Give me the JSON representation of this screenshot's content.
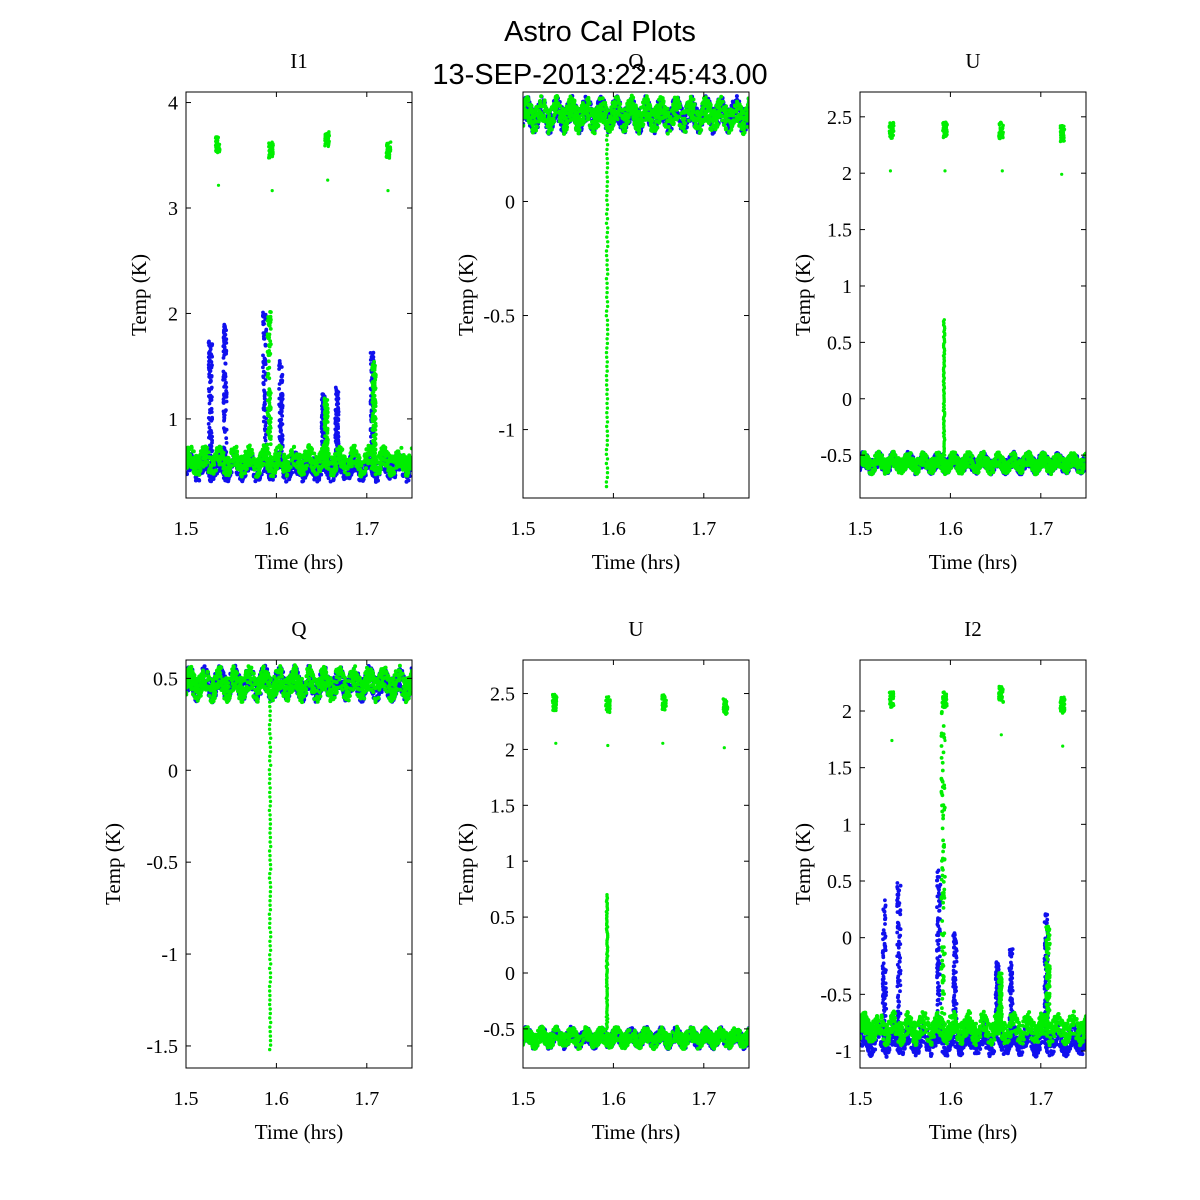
{
  "figure": {
    "title_line1": "Astro Cal Plots",
    "title_line2": "13-SEP-2013:22:45:43.00"
  },
  "colors": {
    "series_blue": "#1010ee",
    "series_green": "#00ee00"
  },
  "chart_data": [
    {
      "type": "scatter",
      "title": "I1",
      "xlabel": "Time (hrs)",
      "ylabel": "Temp (K)",
      "xlim": [
        1.5,
        1.75
      ],
      "ylim": [
        0.25,
        4.1
      ],
      "xticks": [
        1.5,
        1.6,
        1.7
      ],
      "yticks": [
        1,
        2,
        3,
        4
      ],
      "series": [
        {
          "name": "blue",
          "baseline": 0.55,
          "spread": 0.09,
          "peaks": [
            [
              1.527,
              1.75
            ],
            [
              1.543,
              1.9
            ],
            [
              1.587,
              2.02
            ],
            [
              1.605,
              1.55
            ],
            [
              1.652,
              1.25
            ],
            [
              1.667,
              1.3
            ],
            [
              1.706,
              1.63
            ]
          ]
        },
        {
          "name": "green",
          "baseline": 0.6,
          "spread": 0.09,
          "peaks": [
            [
              1.592,
              2.05
            ],
            [
              1.655,
              1.2
            ],
            [
              1.708,
              1.55
            ]
          ],
          "clusters": [
            [
              1.535,
              3.6
            ],
            [
              1.594,
              3.55
            ],
            [
              1.656,
              3.65
            ],
            [
              1.724,
              3.55
            ]
          ]
        }
      ]
    },
    {
      "type": "scatter",
      "title": "Q",
      "xlabel": "Time (hrs)",
      "ylabel": "Temp (K)",
      "xlim": [
        1.5,
        1.75
      ],
      "ylim": [
        -1.3,
        0.48
      ],
      "xticks": [
        1.5,
        1.6,
        1.7
      ],
      "yticks": [
        -1,
        -0.5,
        0
      ],
      "series": [
        {
          "name": "blue",
          "baseline": 0.38,
          "spread": 0.05
        },
        {
          "name": "green",
          "baseline": 0.38,
          "spread": 0.05,
          "vline": [
            1.593,
            -1.25,
            0.35
          ]
        }
      ]
    },
    {
      "type": "scatter",
      "title": "U",
      "xlabel": "Time (hrs)",
      "ylabel": "Temp (K)",
      "xlim": [
        1.5,
        1.75
      ],
      "ylim": [
        -0.88,
        2.72
      ],
      "xticks": [
        1.5,
        1.6,
        1.7
      ],
      "yticks": [
        -0.5,
        0,
        0.5,
        1,
        1.5,
        2,
        2.5
      ],
      "series": [
        {
          "name": "blue",
          "baseline": -0.57,
          "spread": 0.06
        },
        {
          "name": "green",
          "baseline": -0.57,
          "spread": 0.06,
          "vline": [
            1.593,
            -0.5,
            0.7
          ],
          "clusters": [
            [
              1.535,
              2.38
            ],
            [
              1.594,
              2.38
            ],
            [
              1.656,
              2.38
            ],
            [
              1.724,
              2.35
            ]
          ]
        }
      ]
    },
    {
      "type": "scatter",
      "title": "Q",
      "xlabel": "Time (hrs)",
      "ylabel": "Temp (K)",
      "xlim": [
        1.5,
        1.75
      ],
      "ylim": [
        -1.62,
        0.6
      ],
      "xticks": [
        1.5,
        1.6,
        1.7
      ],
      "yticks": [
        -1.5,
        -1,
        -0.5,
        0,
        0.5
      ],
      "series": [
        {
          "name": "blue",
          "baseline": 0.47,
          "spread": 0.06
        },
        {
          "name": "green",
          "baseline": 0.47,
          "spread": 0.06,
          "vline": [
            1.593,
            -1.52,
            0.42
          ]
        }
      ]
    },
    {
      "type": "scatter",
      "title": "U",
      "xlabel": "Time (hrs)",
      "ylabel": "Temp (K)",
      "xlim": [
        1.5,
        1.75
      ],
      "ylim": [
        -0.85,
        2.8
      ],
      "xticks": [
        1.5,
        1.6,
        1.7
      ],
      "yticks": [
        -0.5,
        0,
        0.5,
        1,
        1.5,
        2,
        2.5
      ],
      "series": [
        {
          "name": "blue",
          "baseline": -0.58,
          "spread": 0.06
        },
        {
          "name": "green",
          "baseline": -0.58,
          "spread": 0.06,
          "vline": [
            1.593,
            -0.5,
            0.7
          ],
          "clusters": [
            [
              1.535,
              2.42
            ],
            [
              1.594,
              2.4
            ],
            [
              1.656,
              2.42
            ],
            [
              1.724,
              2.38
            ]
          ]
        }
      ]
    },
    {
      "type": "scatter",
      "title": "I2",
      "xlabel": "Time (hrs)",
      "ylabel": "Temp (K)",
      "xlim": [
        1.5,
        1.75
      ],
      "ylim": [
        -1.15,
        2.45
      ],
      "xticks": [
        1.5,
        1.6,
        1.7
      ],
      "yticks": [
        -1,
        -0.5,
        0,
        0.5,
        1,
        1.5,
        2
      ],
      "series": [
        {
          "name": "blue",
          "baseline": -0.9,
          "spread": 0.09,
          "peaks": [
            [
              1.527,
              0.35
            ],
            [
              1.543,
              0.52
            ],
            [
              1.587,
              0.6
            ],
            [
              1.605,
              0.05
            ],
            [
              1.652,
              -0.2
            ],
            [
              1.667,
              -0.1
            ],
            [
              1.706,
              0.22
            ]
          ]
        },
        {
          "name": "green",
          "baseline": -0.8,
          "spread": 0.09,
          "peaks": [
            [
              1.592,
              2.1
            ],
            [
              1.655,
              -0.3
            ],
            [
              1.708,
              0.1
            ]
          ],
          "clusters": [
            [
              1.535,
              2.1
            ],
            [
              1.594,
              2.1
            ],
            [
              1.656,
              2.15
            ],
            [
              1.724,
              2.05
            ]
          ]
        }
      ]
    }
  ]
}
